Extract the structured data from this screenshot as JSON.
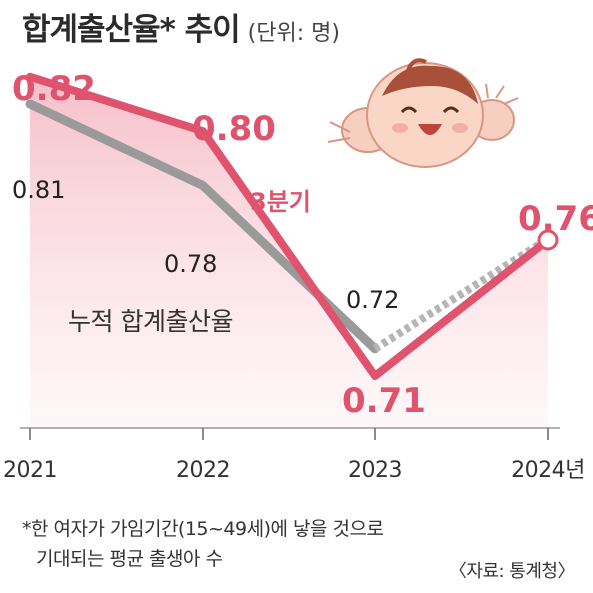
{
  "title": "합계출산율* 추이",
  "unit": "(단위: 명)",
  "footnote_line1": "*한 여자가 가임기간(15~49세)에 낳을 것으로",
  "footnote_line2": "기대되는 평균 출생아 수",
  "source": "〈자료: 통계청〉",
  "colors": {
    "quarterly": "#e0536e",
    "quarterly_area": "#f7c9d1",
    "cumulative": "#9a9a9a",
    "axis": "#666666"
  },
  "chart_data": {
    "type": "line",
    "categories": [
      "2021",
      "2022",
      "2023",
      "2024년"
    ],
    "series": [
      {
        "name": "3분기",
        "values": [
          0.82,
          0.8,
          0.71,
          0.76
        ],
        "labels": [
          "0.82",
          "0.80",
          "0.71",
          "0.76"
        ],
        "color": "#e0536e",
        "area": true
      },
      {
        "name": "누적 합계출산율",
        "values": [
          0.81,
          0.78,
          0.72,
          0.76
        ],
        "labels": [
          "0.81",
          "0.78",
          "0.72",
          null
        ],
        "color": "#9a9a9a",
        "dashed_last_segment": true
      }
    ]
  }
}
